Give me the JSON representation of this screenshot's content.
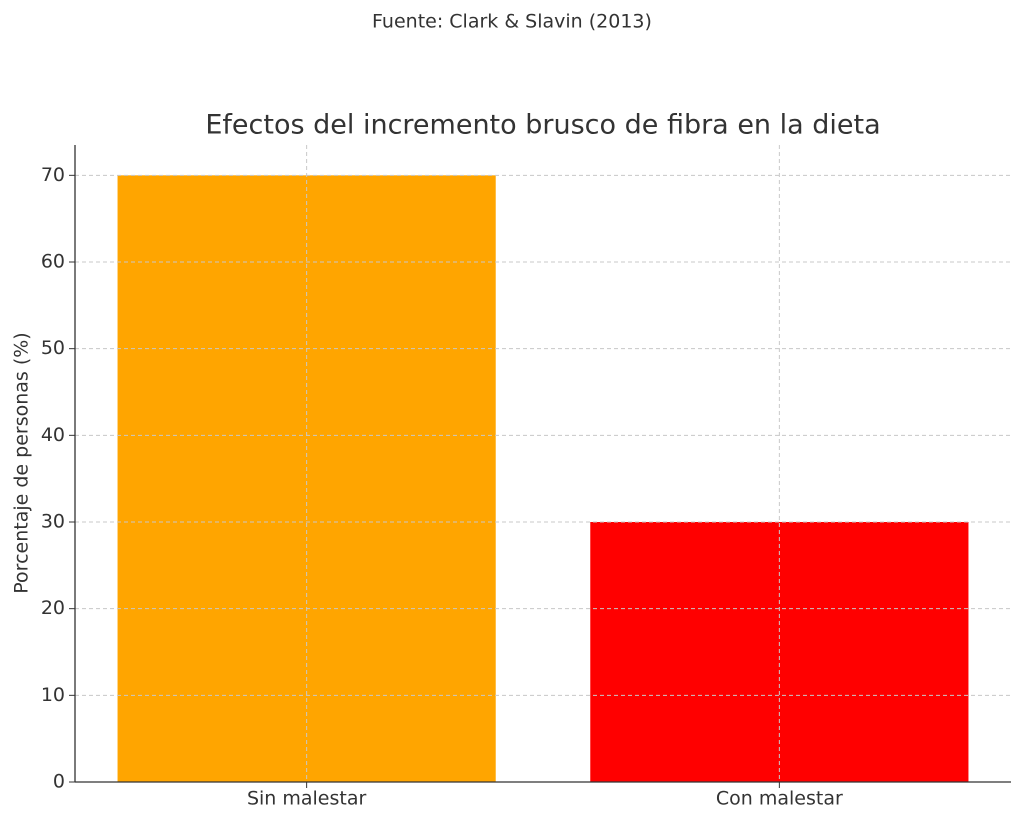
{
  "chart_data": {
    "type": "bar",
    "subtitle": "Fuente: Clark & Slavin (2013)",
    "title": "Efectos del incremento brusco de fibra en la dieta",
    "y_label": "Porcentaje de personas (%)",
    "categories": [
      "Sin malestar",
      "Con malestar"
    ],
    "values": [
      70,
      30
    ],
    "colors": [
      "#ffa500",
      "#ff0000"
    ],
    "ylim": [
      0,
      73.5
    ],
    "yticks": [
      0,
      10,
      20,
      30,
      40,
      50,
      60,
      70
    ],
    "grid": true
  }
}
